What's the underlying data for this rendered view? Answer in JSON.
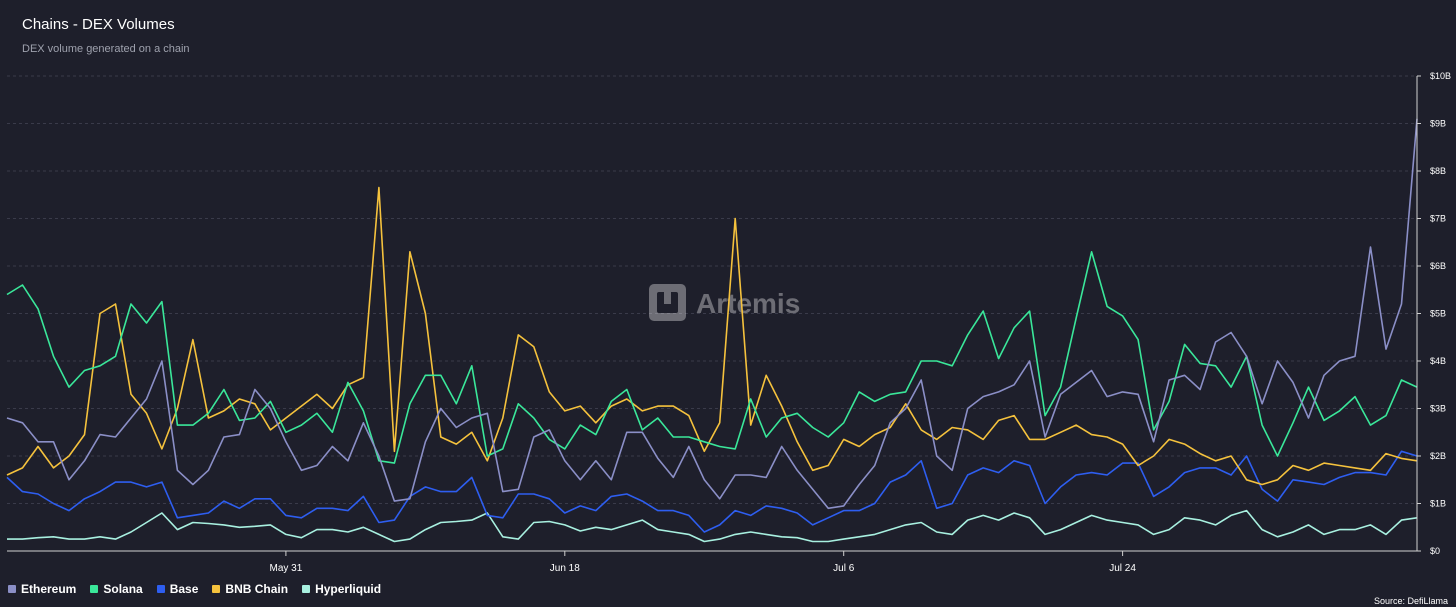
{
  "header": {
    "title": "Chains - DEX Volumes",
    "subtitle": "DEX volume generated on a chain"
  },
  "watermark": "Artemis",
  "source": "Source: DefiLlama",
  "colors": {
    "background": "#1e1f2b",
    "grid": "#444655",
    "axis": "#d0d0d0"
  },
  "chart_data": {
    "type": "line",
    "title": "Chains - DEX Volumes",
    "subtitle": "DEX volume generated on a chain",
    "xlabel": "",
    "ylabel": "",
    "ylim": [
      0,
      10
    ],
    "y_unit": "B",
    "y_ticks": [
      "$0",
      "$1B",
      "$2B",
      "$3B",
      "$4B",
      "$5B",
      "$6B",
      "$7B",
      "$8B",
      "$9B",
      "$10B"
    ],
    "x_ticks": [
      {
        "label": "May 31",
        "index": 18
      },
      {
        "label": "Jun 18",
        "index": 36
      },
      {
        "label": "Jul 6",
        "index": 54
      },
      {
        "label": "Jul 24",
        "index": 72
      }
    ],
    "legend_position": "bottom-left",
    "series": [
      {
        "name": "Ethereum",
        "color": "#8b8fc7",
        "values": [
          2.8,
          2.7,
          2.3,
          2.3,
          1.5,
          1.9,
          2.45,
          2.4,
          2.8,
          3.2,
          4.0,
          1.7,
          1.4,
          1.7,
          2.4,
          2.45,
          3.4,
          3.0,
          2.3,
          1.7,
          1.8,
          2.2,
          1.9,
          2.7,
          2.0,
          1.05,
          1.1,
          2.3,
          3.0,
          2.6,
          2.8,
          2.9,
          1.25,
          1.3,
          2.4,
          2.55,
          1.9,
          1.5,
          1.9,
          1.5,
          2.5,
          2.5,
          1.95,
          1.55,
          2.2,
          1.5,
          1.1,
          1.6,
          1.6,
          1.55,
          2.2,
          1.7,
          1.3,
          0.9,
          0.95,
          1.4,
          1.8,
          2.7,
          3.0,
          3.6,
          2.0,
          1.7,
          3.0,
          3.25,
          3.35,
          3.5,
          4.0,
          2.4,
          3.3,
          3.55,
          3.8,
          3.25,
          3.35,
          3.3,
          2.3,
          3.6,
          3.7,
          3.4,
          4.4,
          4.6,
          4.1,
          3.1,
          4.0,
          3.55,
          2.8,
          3.7,
          4.0,
          4.1,
          6.4,
          4.25,
          5.2,
          9.1
        ]
      },
      {
        "name": "Solana",
        "color": "#3ae79a",
        "values": [
          5.4,
          5.6,
          5.1,
          4.1,
          3.45,
          3.8,
          3.9,
          4.1,
          5.2,
          4.8,
          5.25,
          2.65,
          2.65,
          2.9,
          3.4,
          2.75,
          2.8,
          3.15,
          2.5,
          2.65,
          2.9,
          2.5,
          3.55,
          2.95,
          1.9,
          1.85,
          3.1,
          3.7,
          3.7,
          3.1,
          3.9,
          2.0,
          2.15,
          3.1,
          2.8,
          2.35,
          2.15,
          2.65,
          2.45,
          3.15,
          3.4,
          2.55,
          2.8,
          2.4,
          2.4,
          2.3,
          2.2,
          2.15,
          3.2,
          2.4,
          2.8,
          2.9,
          2.6,
          2.4,
          2.7,
          3.35,
          3.15,
          3.3,
          3.35,
          4.0,
          4.0,
          3.9,
          4.55,
          5.05,
          4.05,
          4.7,
          5.05,
          2.85,
          3.45,
          4.9,
          6.3,
          5.15,
          4.95,
          4.45,
          2.55,
          3.15,
          4.35,
          3.95,
          3.9,
          3.45,
          4.1,
          2.65,
          2.0,
          2.7,
          3.45,
          2.75,
          2.95,
          3.25,
          2.65,
          2.85,
          3.6,
          3.45
        ]
      },
      {
        "name": "Base",
        "color": "#2e5ef0",
        "values": [
          1.55,
          1.25,
          1.2,
          1.0,
          0.85,
          1.1,
          1.25,
          1.45,
          1.45,
          1.35,
          1.45,
          0.7,
          0.75,
          0.8,
          1.05,
          0.9,
          1.1,
          1.1,
          0.75,
          0.7,
          0.9,
          0.9,
          0.85,
          1.15,
          0.6,
          0.65,
          1.15,
          1.35,
          1.25,
          1.25,
          1.55,
          0.75,
          0.7,
          1.2,
          1.2,
          1.1,
          0.8,
          0.95,
          0.85,
          1.15,
          1.2,
          1.05,
          0.85,
          0.85,
          0.75,
          0.4,
          0.55,
          0.85,
          0.75,
          0.95,
          0.9,
          0.8,
          0.55,
          0.7,
          0.85,
          0.85,
          1.0,
          1.45,
          1.6,
          1.9,
          0.9,
          1.0,
          1.6,
          1.75,
          1.65,
          1.9,
          1.8,
          1.0,
          1.35,
          1.6,
          1.65,
          1.6,
          1.85,
          1.85,
          1.15,
          1.35,
          1.65,
          1.75,
          1.75,
          1.6,
          2.0,
          1.3,
          1.05,
          1.5,
          1.45,
          1.4,
          1.55,
          1.65,
          1.65,
          1.6,
          2.1,
          2.0
        ]
      },
      {
        "name": "BNB Chain",
        "color": "#f5c23d",
        "values": [
          1.6,
          1.75,
          2.2,
          1.75,
          2.0,
          2.45,
          5.0,
          5.2,
          3.3,
          2.9,
          2.15,
          3.0,
          4.45,
          2.8,
          2.95,
          3.2,
          3.1,
          2.55,
          2.8,
          3.05,
          3.3,
          3.0,
          3.5,
          3.65,
          7.65,
          2.1,
          6.3,
          5.0,
          2.4,
          2.25,
          2.5,
          1.9,
          2.8,
          4.55,
          4.3,
          3.35,
          2.95,
          3.05,
          2.7,
          3.05,
          3.2,
          2.95,
          3.05,
          3.05,
          2.85,
          2.1,
          2.7,
          7.0,
          2.65,
          3.7,
          3.05,
          2.3,
          1.7,
          1.8,
          2.35,
          2.2,
          2.45,
          2.6,
          3.1,
          2.55,
          2.35,
          2.6,
          2.55,
          2.35,
          2.75,
          2.85,
          2.35,
          2.35,
          2.5,
          2.65,
          2.45,
          2.4,
          2.25,
          1.8,
          2.0,
          2.35,
          2.25,
          2.05,
          1.9,
          2.0,
          1.5,
          1.4,
          1.5,
          1.8,
          1.7,
          1.85,
          1.8,
          1.75,
          1.7,
          2.05,
          1.95,
          1.9
        ]
      },
      {
        "name": "Hyperliquid",
        "color": "#a8f0e0",
        "values": [
          0.25,
          0.25,
          0.28,
          0.3,
          0.25,
          0.25,
          0.3,
          0.25,
          0.4,
          0.6,
          0.8,
          0.45,
          0.6,
          0.58,
          0.55,
          0.5,
          0.52,
          0.55,
          0.35,
          0.28,
          0.45,
          0.45,
          0.4,
          0.5,
          0.35,
          0.2,
          0.25,
          0.45,
          0.6,
          0.62,
          0.65,
          0.8,
          0.3,
          0.25,
          0.6,
          0.62,
          0.55,
          0.42,
          0.5,
          0.45,
          0.55,
          0.65,
          0.45,
          0.4,
          0.35,
          0.2,
          0.25,
          0.35,
          0.4,
          0.35,
          0.3,
          0.28,
          0.2,
          0.2,
          0.25,
          0.3,
          0.35,
          0.45,
          0.55,
          0.6,
          0.4,
          0.35,
          0.65,
          0.75,
          0.65,
          0.8,
          0.7,
          0.35,
          0.45,
          0.6,
          0.75,
          0.65,
          0.6,
          0.55,
          0.35,
          0.45,
          0.7,
          0.65,
          0.55,
          0.75,
          0.85,
          0.45,
          0.3,
          0.4,
          0.55,
          0.35,
          0.45,
          0.45,
          0.55,
          0.35,
          0.65,
          0.7
        ]
      }
    ]
  }
}
